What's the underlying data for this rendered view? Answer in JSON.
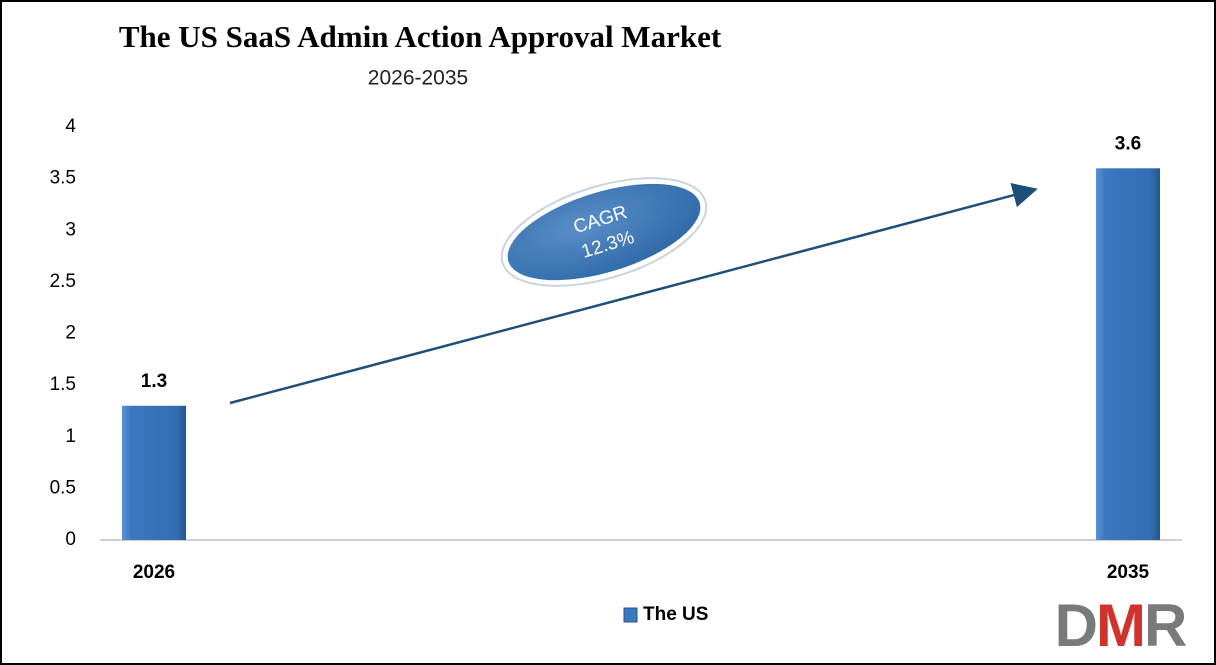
{
  "chart_data": {
    "type": "bar",
    "title": "The US SaaS Admin Action Approval Market",
    "subtitle": "2026-2035",
    "categories": [
      "2026",
      "2035"
    ],
    "series": [
      {
        "name": "The US",
        "color": "#3a78c0",
        "values": [
          1.3,
          3.6
        ]
      }
    ],
    "ylim": [
      0,
      4
    ],
    "yticks": [
      0,
      0.5,
      1,
      1.5,
      2,
      2.5,
      3,
      3.5,
      4
    ],
    "grid": false,
    "legend": "bottom",
    "annotations": [
      "CAGR",
      "12.3%"
    ]
  },
  "logo": "DMR"
}
